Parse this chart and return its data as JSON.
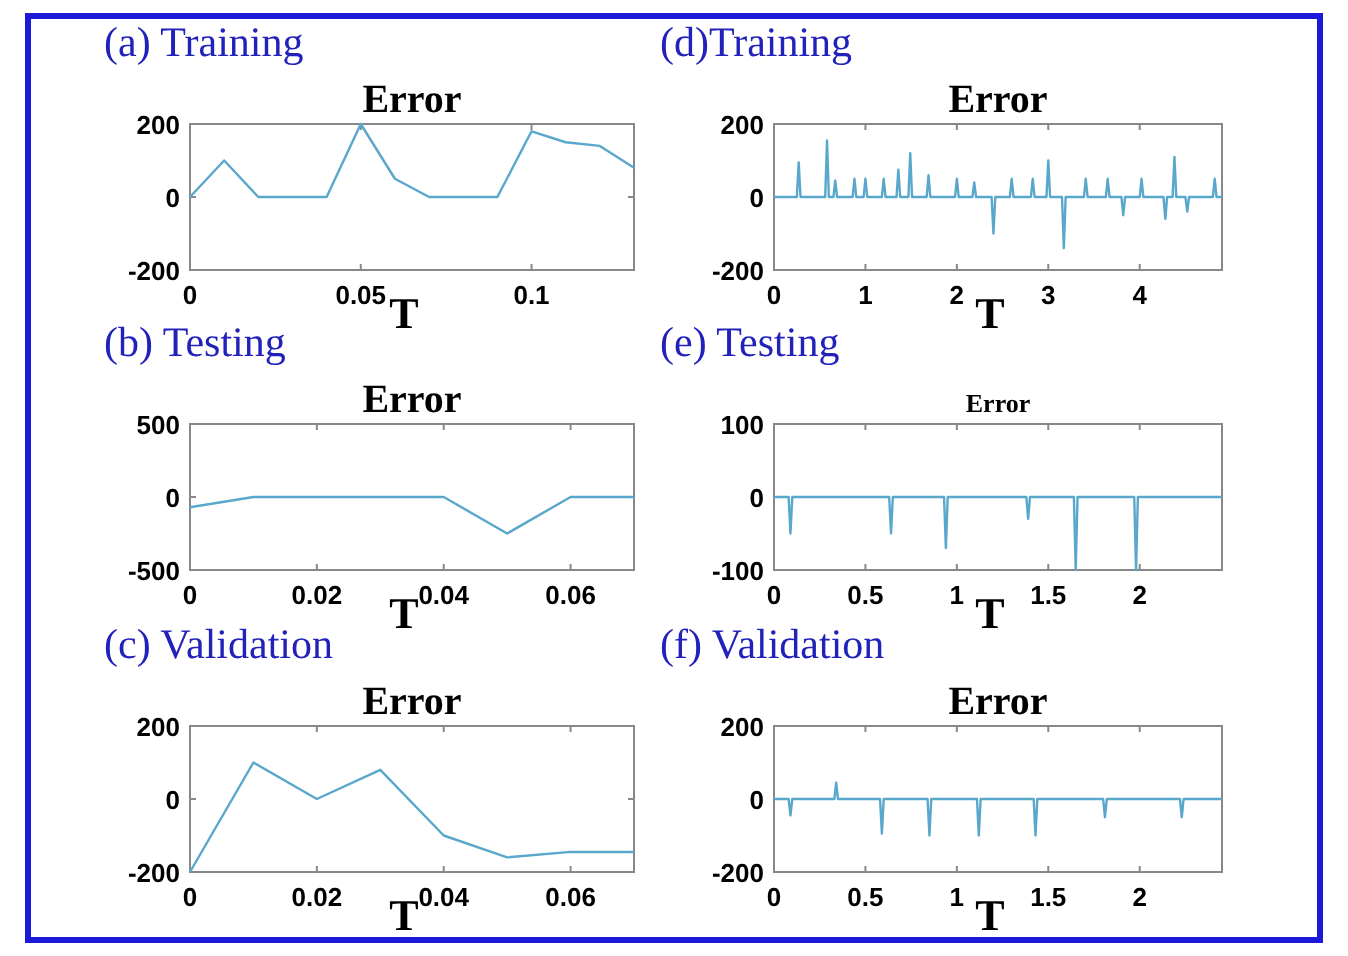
{
  "chart_data": [
    {
      "type": "line",
      "title": "(a) Training",
      "subtitle": "Error",
      "xlabel": "T",
      "x": [
        0,
        0.01,
        0.02,
        0.03,
        0.04,
        0.05,
        0.06,
        0.07,
        0.08,
        0.09,
        0.1,
        0.11,
        0.12,
        0.13
      ],
      "series": [
        {
          "color": "#5aa7cc",
          "values": [
            0,
            100,
            0,
            0,
            0,
            200,
            50,
            0,
            0,
            0,
            180,
            150,
            140,
            80
          ]
        }
      ],
      "xlim": [
        0,
        0.13
      ],
      "xticks": [
        0,
        0.05,
        0.1
      ],
      "ylim": [
        -200,
        200
      ],
      "yticks": [
        -200,
        0,
        200
      ],
      "grid": false
    },
    {
      "type": "line",
      "title": "(d)Training",
      "subtitle": "Error",
      "xlabel": "T",
      "x": [
        0,
        0.25,
        0.27,
        0.29,
        0.56,
        0.58,
        0.6,
        0.65,
        0.67,
        0.69,
        0.86,
        0.88,
        0.9,
        0.98,
        1.0,
        1.02,
        1.18,
        1.2,
        1.22,
        1.34,
        1.36,
        1.38,
        1.47,
        1.49,
        1.51,
        1.67,
        1.69,
        1.71,
        1.98,
        2.0,
        2.02,
        2.17,
        2.19,
        2.21,
        2.38,
        2.4,
        2.42,
        2.58,
        2.6,
        2.62,
        2.81,
        2.83,
        2.85,
        2.98,
        3.0,
        3.02,
        3.15,
        3.17,
        3.19,
        3.39,
        3.41,
        3.43,
        3.63,
        3.65,
        3.67,
        3.8,
        3.82,
        3.84,
        4.0,
        4.02,
        4.04,
        4.26,
        4.28,
        4.3,
        4.36,
        4.38,
        4.4,
        4.5,
        4.52,
        4.54,
        4.8,
        4.82,
        4.84,
        4.9
      ],
      "series": [
        {
          "color": "#5aa7cc",
          "values": [
            0,
            0,
            95,
            0,
            0,
            155,
            0,
            0,
            45,
            0,
            0,
            50,
            0,
            0,
            50,
            0,
            0,
            50,
            0,
            0,
            75,
            0,
            0,
            120,
            0,
            0,
            60,
            0,
            0,
            50,
            0,
            0,
            40,
            0,
            0,
            -100,
            0,
            0,
            50,
            0,
            0,
            50,
            0,
            0,
            100,
            0,
            0,
            -140,
            0,
            0,
            50,
            0,
            0,
            50,
            0,
            0,
            -50,
            0,
            0,
            50,
            0,
            0,
            -60,
            0,
            0,
            110,
            0,
            0,
            -40,
            0,
            0,
            50,
            0,
            0
          ]
        }
      ],
      "xlim": [
        0,
        4.9
      ],
      "xticks": [
        0,
        1,
        2,
        3,
        4
      ],
      "ylim": [
        -200,
        200
      ],
      "yticks": [
        -200,
        0,
        200
      ],
      "grid": false
    },
    {
      "type": "line",
      "title": "(b) Testing",
      "subtitle": "Error",
      "xlabel": "T",
      "x": [
        0,
        0.01,
        0.02,
        0.03,
        0.04,
        0.05,
        0.06,
        0.07
      ],
      "series": [
        {
          "color": "#5aa7cc",
          "values": [
            -70,
            0,
            0,
            0,
            0,
            -250,
            0,
            0
          ]
        }
      ],
      "xlim": [
        0,
        0.07
      ],
      "xticks": [
        0,
        0.02,
        0.04,
        0.06
      ],
      "ylim": [
        -500,
        500
      ],
      "yticks": [
        -500,
        0,
        500
      ],
      "grid": false
    },
    {
      "type": "line",
      "title": "(e) Testing",
      "subtitle": "Error",
      "xlabel": "T",
      "x": [
        0,
        0.08,
        0.09,
        0.1,
        0.63,
        0.64,
        0.65,
        0.93,
        0.94,
        0.95,
        1.38,
        1.39,
        1.4,
        1.64,
        1.65,
        1.66,
        1.97,
        1.98,
        1.99,
        2.45
      ],
      "series": [
        {
          "color": "#5aa7cc",
          "values": [
            0,
            0,
            -50,
            0,
            0,
            -50,
            0,
            0,
            -70,
            0,
            0,
            -30,
            0,
            0,
            -100,
            0,
            0,
            -100,
            0,
            0
          ]
        }
      ],
      "xlim": [
        0,
        2.45
      ],
      "xticks": [
        0,
        0.5,
        1,
        1.5,
        2
      ],
      "ylim": [
        -100,
        100
      ],
      "yticks": [
        -100,
        0,
        100
      ],
      "grid": false
    },
    {
      "type": "line",
      "title": "(c) Validation",
      "subtitle": "Error",
      "xlabel": "T",
      "x": [
        0,
        0.01,
        0.02,
        0.03,
        0.04,
        0.05,
        0.06,
        0.07
      ],
      "series": [
        {
          "color": "#5aa7cc",
          "values": [
            -200,
            100,
            0,
            80,
            -100,
            -160,
            -145,
            -145
          ]
        }
      ],
      "xlim": [
        0,
        0.07
      ],
      "xticks": [
        0,
        0.02,
        0.04,
        0.06
      ],
      "ylim": [
        -200,
        200
      ],
      "yticks": [
        -200,
        0,
        200
      ],
      "grid": false
    },
    {
      "type": "line",
      "title": "(f) Validation",
      "subtitle": "Error",
      "xlabel": "T",
      "x": [
        0,
        0.08,
        0.09,
        0.1,
        0.33,
        0.34,
        0.35,
        0.58,
        0.59,
        0.6,
        0.84,
        0.85,
        0.86,
        1.11,
        1.12,
        1.13,
        1.42,
        1.43,
        1.44,
        1.8,
        1.81,
        1.82,
        2.22,
        2.23,
        2.24,
        2.45
      ],
      "series": [
        {
          "color": "#5aa7cc",
          "values": [
            0,
            0,
            -45,
            0,
            0,
            45,
            0,
            0,
            -95,
            0,
            0,
            -100,
            0,
            0,
            -100,
            0,
            0,
            -100,
            0,
            0,
            -50,
            0,
            0,
            -50,
            0,
            0
          ]
        }
      ],
      "xlim": [
        0,
        2.45
      ],
      "xticks": [
        0,
        0.5,
        1,
        1.5,
        2
      ],
      "ylim": [
        -200,
        200
      ],
      "yticks": [
        -200,
        0,
        200
      ],
      "grid": false
    }
  ]
}
